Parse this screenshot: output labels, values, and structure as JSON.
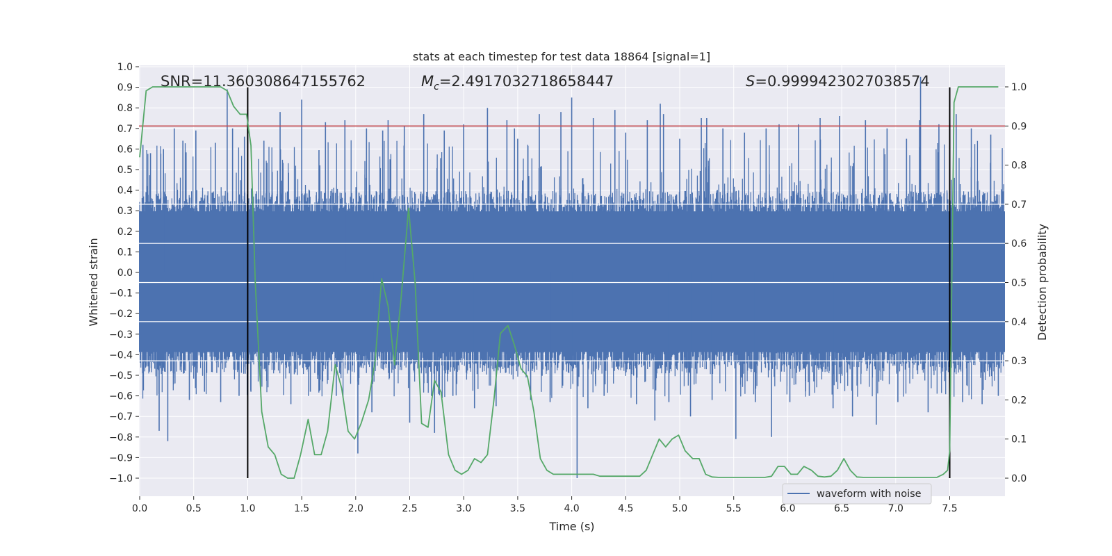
{
  "chart_data": {
    "type": "line",
    "title": "stats at each timestep for test data 18864 [signal=1]",
    "xlabel": "Time (s)",
    "ylabel_left": "Whitened strain",
    "ylabel_right": "Detection probability",
    "xlim": [
      0.0,
      8.0
    ],
    "ylim_left": [
      -1.09,
      1.0
    ],
    "ylim_right": [
      -0.05,
      1.05
    ],
    "xticks": [
      0.0,
      0.5,
      1.0,
      1.5,
      2.0,
      2.5,
      3.0,
      3.5,
      4.0,
      4.5,
      5.0,
      5.5,
      6.0,
      6.5,
      7.0,
      7.5
    ],
    "xtick_labels": [
      "0.0",
      "0.5",
      "1.0",
      "1.5",
      "2.0",
      "2.5",
      "3.0",
      "3.5",
      "4.0",
      "4.5",
      "5.0",
      "5.5",
      "6.0",
      "6.5",
      "7.0",
      "7.5"
    ],
    "yticks_left": [
      -1.0,
      -0.9,
      -0.8,
      -0.7,
      -0.6,
      -0.5,
      -0.4,
      -0.3,
      -0.2,
      -0.1,
      0.0,
      0.1,
      0.2,
      0.3,
      0.4,
      0.5,
      0.6,
      0.7,
      0.8,
      0.9,
      1.0
    ],
    "ytick_labels_left": [
      "−1.0",
      "−0.9",
      "−0.8",
      "−0.7",
      "−0.6",
      "−0.5",
      "−0.4",
      "−0.3",
      "−0.2",
      "−0.1",
      "0.0",
      "0.1",
      "0.2",
      "0.3",
      "0.4",
      "0.5",
      "0.6",
      "0.7",
      "0.8",
      "0.9",
      "1.0"
    ],
    "yticks_right": [
      0.0,
      0.1,
      0.2,
      0.3,
      0.4,
      0.5,
      0.6,
      0.7,
      0.8,
      0.9,
      1.0
    ],
    "ytick_labels_right": [
      "0.0",
      "0.1",
      "0.2",
      "0.3",
      "0.4",
      "0.5",
      "0.6",
      "0.7",
      "0.8",
      "0.9",
      "1.0"
    ],
    "annotations": {
      "snr": "SNR=11.360308647155762",
      "mc_symbol": "M",
      "mc_subscript": "c",
      "mc_value": "=2.4917032718658447",
      "s_symbol": "S",
      "s_value": "=0.9999423027038574"
    },
    "legend": {
      "placement": "lower-right",
      "entries": [
        "waveform with noise"
      ]
    },
    "waveform": {
      "name": "waveform with noise",
      "color": "#4c72b0",
      "duration_s": 8.0,
      "envelope_upper": 0.33,
      "envelope_lower": -0.43,
      "spikes": [
        [
          0.03,
          0.62
        ],
        [
          0.1,
          0.58
        ],
        [
          0.18,
          -0.77
        ],
        [
          0.22,
          0.6
        ],
        [
          0.26,
          -0.82
        ],
        [
          0.32,
          0.7
        ],
        [
          0.4,
          0.64
        ],
        [
          0.46,
          -0.62
        ],
        [
          0.52,
          0.69
        ],
        [
          0.6,
          -0.58
        ],
        [
          0.7,
          0.63
        ],
        [
          0.75,
          -0.63
        ],
        [
          0.81,
          0.89
        ],
        [
          0.86,
          0.7
        ],
        [
          0.92,
          -0.6
        ],
        [
          0.97,
          0.66
        ],
        [
          1.03,
          -0.58
        ],
        [
          1.15,
          0.64
        ],
        [
          1.3,
          0.78
        ],
        [
          1.4,
          -0.64
        ],
        [
          1.5,
          0.84
        ],
        [
          1.58,
          -0.58
        ],
        [
          1.72,
          0.73
        ],
        [
          1.82,
          -0.6
        ],
        [
          1.9,
          0.74
        ],
        [
          2.02,
          -0.88
        ],
        [
          2.1,
          0.7
        ],
        [
          2.15,
          -0.68
        ],
        [
          2.25,
          0.69
        ],
        [
          2.3,
          0.74
        ],
        [
          2.45,
          0.71
        ],
        [
          2.5,
          -0.73
        ],
        [
          2.63,
          0.77
        ],
        [
          2.73,
          -0.78
        ],
        [
          2.82,
          0.69
        ],
        [
          2.9,
          -0.6
        ],
        [
          3.0,
          0.72
        ],
        [
          3.1,
          -0.66
        ],
        [
          3.22,
          0.8
        ],
        [
          3.3,
          -0.65
        ],
        [
          3.4,
          0.74
        ],
        [
          3.47,
          0.7
        ],
        [
          3.5,
          0.65
        ],
        [
          3.62,
          -0.62
        ],
        [
          3.7,
          0.77
        ],
        [
          3.8,
          -0.63
        ],
        [
          3.9,
          0.78
        ],
        [
          4.0,
          0.85
        ],
        [
          4.05,
          -1.0
        ],
        [
          4.15,
          -0.66
        ],
        [
          4.2,
          0.75
        ],
        [
          4.3,
          -0.6
        ],
        [
          4.4,
          0.79
        ],
        [
          4.5,
          0.68
        ],
        [
          4.6,
          -0.64
        ],
        [
          4.7,
          0.74
        ],
        [
          4.77,
          -0.72
        ],
        [
          4.82,
          0.82
        ],
        [
          4.85,
          0.77
        ],
        [
          4.9,
          -0.63
        ],
        [
          5.0,
          0.65
        ],
        [
          5.1,
          -0.7
        ],
        [
          5.2,
          0.75
        ],
        [
          5.25,
          0.75
        ],
        [
          5.3,
          -0.62
        ],
        [
          5.4,
          0.7
        ],
        [
          5.52,
          -0.81
        ],
        [
          5.6,
          0.68
        ],
        [
          5.7,
          -0.63
        ],
        [
          5.8,
          0.7
        ],
        [
          5.85,
          -0.8
        ],
        [
          5.92,
          0.72
        ],
        [
          6.02,
          -0.63
        ],
        [
          6.1,
          0.72
        ],
        [
          6.2,
          -0.6
        ],
        [
          6.3,
          0.75
        ],
        [
          6.42,
          -0.66
        ],
        [
          6.48,
          0.76
        ],
        [
          6.6,
          -0.7
        ],
        [
          6.72,
          0.74
        ],
        [
          6.82,
          -0.74
        ],
        [
          6.92,
          0.7
        ],
        [
          7.02,
          -0.63
        ],
        [
          7.1,
          0.65
        ],
        [
          7.22,
          0.74
        ],
        [
          7.23,
          0.95
        ],
        [
          7.3,
          -0.68
        ],
        [
          7.4,
          0.72
        ],
        [
          7.5,
          -0.61
        ],
        [
          7.56,
          0.77
        ],
        [
          7.62,
          -0.63
        ],
        [
          7.7,
          0.7
        ],
        [
          7.8,
          -0.64
        ],
        [
          7.88,
          0.67
        ],
        [
          7.95,
          -0.6
        ]
      ]
    },
    "threshold": {
      "value_right_axis": 0.9,
      "color": "#c44e52"
    },
    "markers": {
      "x": [
        1.0,
        7.5
      ],
      "range_left": [
        -1.0,
        0.9
      ],
      "color": "#000000"
    },
    "detection_probability": {
      "color": "#55a868",
      "x": [
        0.0,
        0.06,
        0.12,
        0.25,
        0.5,
        0.65,
        0.75,
        0.81,
        0.87,
        0.93,
        0.99,
        1.03,
        1.07,
        1.13,
        1.19,
        1.25,
        1.31,
        1.37,
        1.43,
        1.49,
        1.56,
        1.62,
        1.68,
        1.74,
        1.81,
        1.87,
        1.93,
        1.99,
        2.05,
        2.12,
        2.18,
        2.24,
        2.3,
        2.36,
        2.42,
        2.49,
        2.55,
        2.61,
        2.67,
        2.73,
        2.79,
        2.86,
        2.92,
        2.98,
        3.04,
        3.1,
        3.16,
        3.22,
        3.28,
        3.34,
        3.41,
        3.47,
        3.53,
        3.59,
        3.65,
        3.71,
        3.77,
        3.83,
        3.89,
        3.95,
        4.02,
        4.08,
        4.14,
        4.2,
        4.26,
        4.32,
        4.38,
        4.44,
        4.5,
        4.57,
        4.63,
        4.69,
        4.75,
        4.81,
        4.87,
        4.93,
        4.99,
        5.05,
        5.12,
        5.18,
        5.24,
        5.3,
        5.36,
        5.42,
        5.48,
        5.54,
        5.6,
        5.67,
        5.73,
        5.79,
        5.85,
        5.91,
        5.97,
        6.03,
        6.09,
        6.15,
        6.22,
        6.28,
        6.34,
        6.4,
        6.46,
        6.52,
        6.58,
        6.64,
        6.7,
        6.77,
        6.83,
        6.89,
        6.95,
        7.01,
        7.07,
        7.13,
        7.19,
        7.25,
        7.32,
        7.38,
        7.44,
        7.48,
        7.5,
        7.54,
        7.58,
        7.62,
        7.68,
        7.75,
        7.8,
        7.95
      ],
      "y": [
        0.82,
        0.99,
        1.0,
        1.0,
        1.0,
        1.0,
        1.0,
        0.99,
        0.95,
        0.93,
        0.93,
        0.85,
        0.5,
        0.17,
        0.08,
        0.06,
        0.01,
        0.0,
        0.0,
        0.06,
        0.15,
        0.06,
        0.06,
        0.12,
        0.29,
        0.23,
        0.12,
        0.1,
        0.14,
        0.2,
        0.3,
        0.51,
        0.44,
        0.29,
        0.46,
        0.69,
        0.5,
        0.14,
        0.13,
        0.25,
        0.22,
        0.06,
        0.02,
        0.01,
        0.02,
        0.05,
        0.04,
        0.06,
        0.2,
        0.37,
        0.39,
        0.34,
        0.28,
        0.26,
        0.17,
        0.05,
        0.02,
        0.01,
        0.01,
        0.01,
        0.01,
        0.01,
        0.01,
        0.01,
        0.005,
        0.005,
        0.005,
        0.005,
        0.005,
        0.005,
        0.005,
        0.02,
        0.06,
        0.1,
        0.08,
        0.1,
        0.11,
        0.07,
        0.05,
        0.05,
        0.01,
        0.003,
        0.002,
        0.002,
        0.002,
        0.002,
        0.002,
        0.002,
        0.002,
        0.002,
        0.005,
        0.03,
        0.03,
        0.01,
        0.01,
        0.03,
        0.02,
        0.005,
        0.003,
        0.005,
        0.02,
        0.05,
        0.02,
        0.003,
        0.002,
        0.002,
        0.002,
        0.002,
        0.002,
        0.002,
        0.002,
        0.002,
        0.002,
        0.002,
        0.002,
        0.002,
        0.01,
        0.02,
        0.07,
        0.96,
        1.0,
        1.0,
        1.0,
        1.0,
        1.0,
        1.0
      ]
    }
  }
}
